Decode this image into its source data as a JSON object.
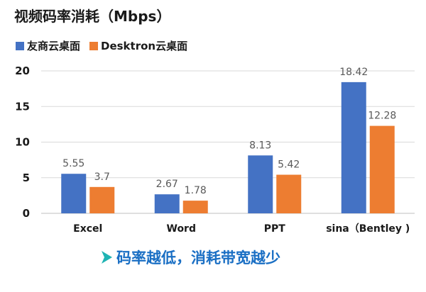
{
  "chart_data": {
    "type": "bar",
    "title": "视频码率消耗（Mbps）",
    "categories": [
      "Excel",
      "Word",
      "PPT",
      "sina（Bentley )"
    ],
    "series": [
      {
        "name": "友商云桌面",
        "values": [
          5.55,
          2.67,
          8.13,
          18.42
        ],
        "labels": [
          "5.55",
          "2.67",
          "8.13",
          "18.42"
        ],
        "color": "#4472c4"
      },
      {
        "name": "Desktron云桌面",
        "values": [
          3.7,
          1.78,
          5.42,
          12.28
        ],
        "labels": [
          "3.7",
          "1.78",
          "5.42",
          "12.28"
        ],
        "color": "#ed7d31"
      }
    ],
    "ylim": [
      0,
      20
    ],
    "yticks": [
      "0",
      "5",
      "10",
      "15",
      "20"
    ],
    "ytick_values": [
      0,
      5,
      10,
      15,
      20
    ],
    "legend_position": "top-left",
    "grid": true,
    "xlabel": "",
    "ylabel": ""
  },
  "footer": {
    "text": "码率越低，消耗带宽越少",
    "icon": "arrow-right-icon",
    "color": "#1a6fc4",
    "icon_color": "#1fb3b3"
  }
}
